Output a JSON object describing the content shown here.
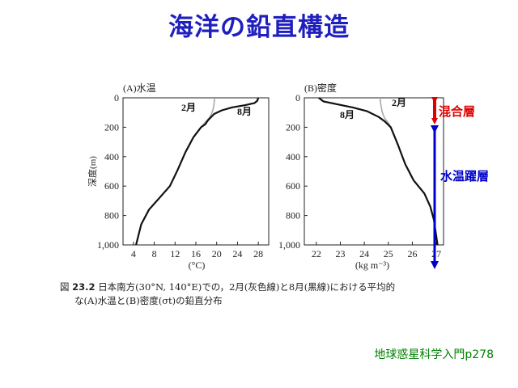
{
  "slide": {
    "title": "海洋の鉛直構造",
    "caption_fig": "図",
    "caption_num": "23.2",
    "caption_line1": "日本南方(30°N, 140°E)での，2月(灰色線)と8月(黒線)における平均的",
    "caption_line2": "な(A)水温と(B)密度(σt)の鉛直分布",
    "source": "地球惑星科学入門p278",
    "colors": {
      "title": "#1f1fc0",
      "arrow_red": "#e00000",
      "arrow_blue": "#0000cc",
      "source": "#008000"
    }
  },
  "chart_data": [
    {
      "type": "line",
      "title": "(A)水温",
      "xlabel": "(°C)",
      "ylabel": "深度(m)",
      "xlim": [
        2,
        30
      ],
      "ylim": [
        1000,
        0
      ],
      "xticks": [
        "4",
        "8",
        "12",
        "16",
        "20",
        "24",
        "28"
      ],
      "yticks": [
        "0",
        "200",
        "400",
        "600",
        "800",
        "1,000"
      ],
      "series": [
        {
          "name": "2月",
          "color": "#aaaaaa",
          "points": [
            [
              19.6,
              0
            ],
            [
              19.5,
              40
            ],
            [
              19.3,
              80
            ],
            [
              19.0,
              110
            ],
            [
              18.5,
              140
            ],
            [
              17.8,
              165
            ],
            [
              17,
              200
            ],
            [
              15.5,
              270
            ],
            [
              14,
              370
            ],
            [
              12.5,
              490
            ],
            [
              11,
              600
            ],
            [
              9,
              680
            ],
            [
              7,
              760
            ],
            [
              5.5,
              860
            ],
            [
              4.5,
              1000
            ]
          ]
        },
        {
          "name": "8月",
          "color": "#111111",
          "points": [
            [
              28,
              0
            ],
            [
              27.8,
              20
            ],
            [
              27.3,
              35
            ],
            [
              25.5,
              50
            ],
            [
              23,
              65
            ],
            [
              21,
              85
            ],
            [
              19.5,
              110
            ],
            [
              18.4,
              150
            ],
            [
              17.8,
              180
            ],
            [
              17,
              200
            ],
            [
              15.5,
              270
            ],
            [
              14,
              370
            ],
            [
              12.5,
              490
            ],
            [
              11,
              600
            ],
            [
              9,
              680
            ],
            [
              7,
              760
            ],
            [
              5.5,
              860
            ],
            [
              4.5,
              1000
            ]
          ]
        }
      ]
    },
    {
      "type": "line",
      "title": "(B)密度",
      "xlabel": "(kg m⁻³)",
      "ylabel": "",
      "xlim": [
        21.5,
        27.3
      ],
      "ylim": [
        1000,
        0
      ],
      "xticks": [
        "22",
        "23",
        "24",
        "25",
        "26",
        "27"
      ],
      "yticks": [
        "0",
        "200",
        "400",
        "600",
        "800",
        "1,000"
      ],
      "series": [
        {
          "name": "2月",
          "color": "#aaaaaa",
          "points": [
            [
              24.65,
              0
            ],
            [
              24.7,
              60
            ],
            [
              24.75,
              100
            ],
            [
              24.85,
              140
            ],
            [
              25.0,
              170
            ],
            [
              25.1,
              200
            ],
            [
              25.4,
              320
            ],
            [
              25.7,
              450
            ],
            [
              26.05,
              560
            ],
            [
              26.5,
              650
            ],
            [
              26.75,
              740
            ],
            [
              26.9,
              830
            ],
            [
              27.05,
              1000
            ]
          ]
        },
        {
          "name": "8月",
          "color": "#111111",
          "points": [
            [
              22.1,
              0
            ],
            [
              22.3,
              25
            ],
            [
              22.9,
              45
            ],
            [
              23.5,
              65
            ],
            [
              24.1,
              90
            ],
            [
              24.6,
              130
            ],
            [
              24.85,
              160
            ],
            [
              25.1,
              200
            ],
            [
              25.4,
              320
            ],
            [
              25.7,
              450
            ],
            [
              26.05,
              560
            ],
            [
              26.5,
              650
            ],
            [
              26.75,
              740
            ],
            [
              26.9,
              830
            ],
            [
              27.05,
              1000
            ]
          ]
        }
      ]
    }
  ],
  "annotations": {
    "a_feb": "2月",
    "a_aug": "8月",
    "b_feb": "2月",
    "b_aug": "8月",
    "mixed_layer": "混合層",
    "thermocline": "水温躍層"
  }
}
